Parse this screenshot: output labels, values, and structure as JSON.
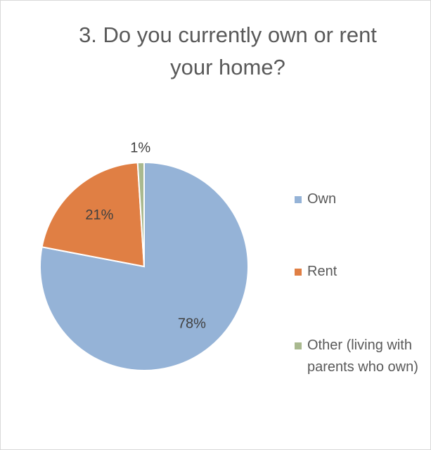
{
  "chart_data": {
    "type": "pie",
    "title": "3. Do you currently own or rent your home?",
    "categories": [
      "Own",
      "Rent",
      "Other (living with parents who own)"
    ],
    "values": [
      78,
      21,
      1
    ],
    "value_labels": [
      "78%",
      "21%",
      "1%"
    ],
    "colors": [
      "#95b3d7",
      "#e07f44",
      "#a9b98f"
    ],
    "legend": "right"
  }
}
